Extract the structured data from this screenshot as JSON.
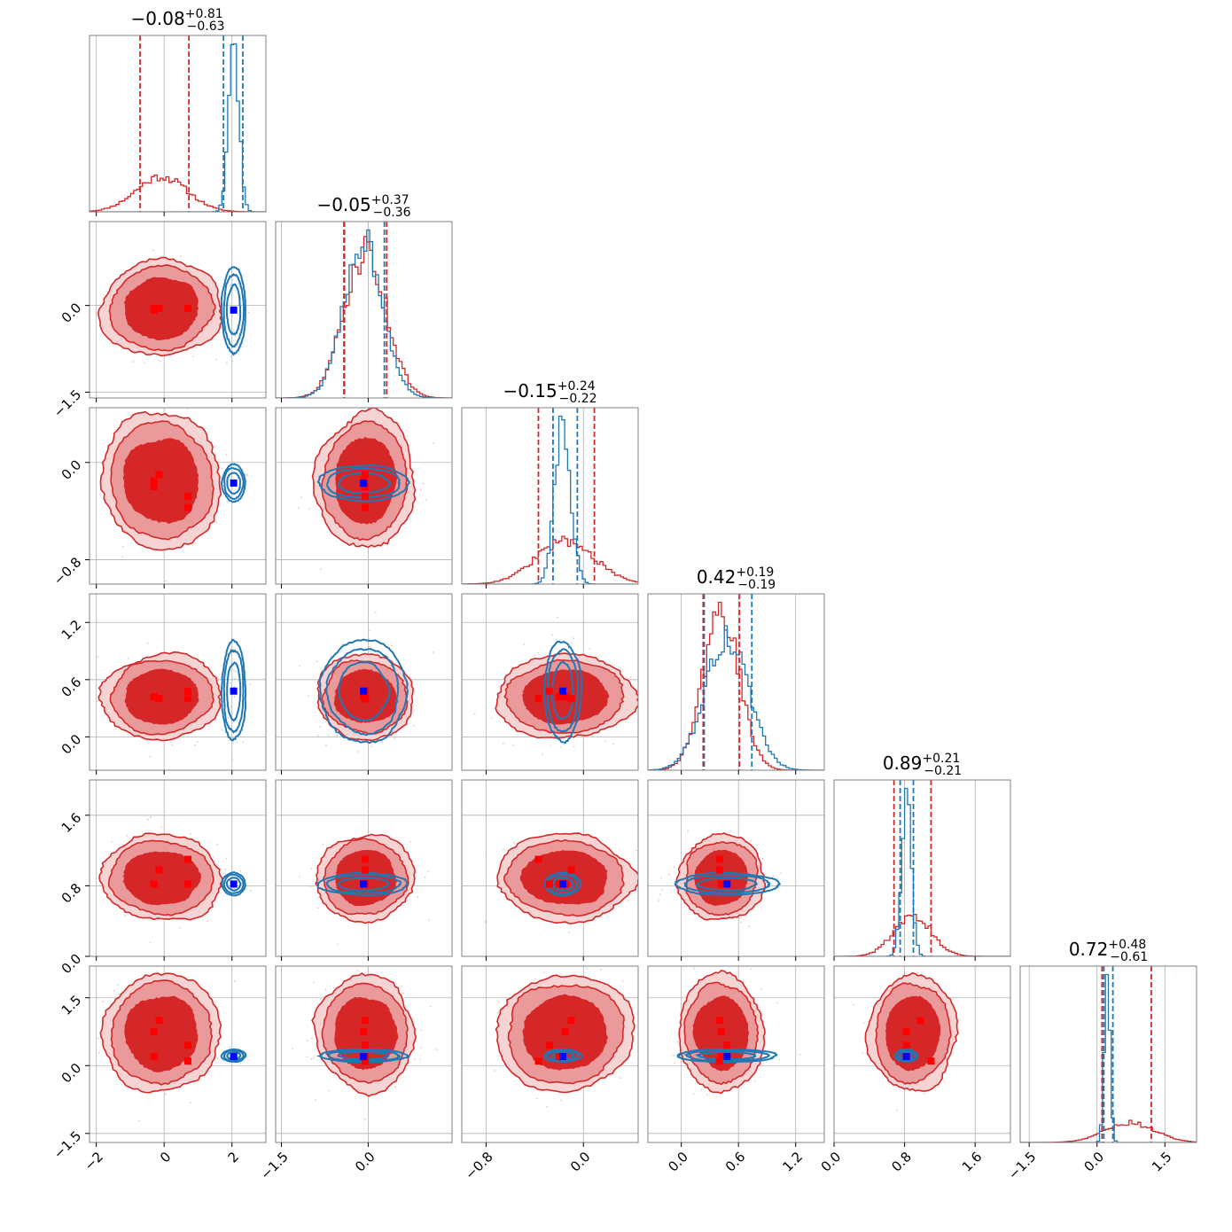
{
  "chart_data": {
    "type": "corner",
    "n_params": 6,
    "colors": {
      "red": "#d62728",
      "blue": "#1f77b4",
      "grid": "#b0b0b0",
      "marker_red": "#ff0000",
      "marker_blue": "#0000ff"
    },
    "grid": true,
    "params": [
      {
        "range": [
          -2.2,
          3.0
        ],
        "ticks": [
          -2,
          0,
          2
        ],
        "tick_labels": [
          "−2",
          "0",
          "2"
        ],
        "title": {
          "value": "−0.08",
          "plus": "+0.81",
          "minus": "−0.63"
        },
        "red": {
          "mean": -0.08,
          "sd": 0.75,
          "q16": -0.71,
          "q84": 0.73
        },
        "blue": {
          "mean": 2.05,
          "sd": 0.15,
          "q16": 1.75,
          "q84": 2.32
        }
      },
      {
        "range": [
          -1.6,
          1.45
        ],
        "ticks": [
          -1.5,
          0.0
        ],
        "tick_labels": [
          "−1.5",
          "0.0"
        ],
        "title": {
          "value": "−0.05",
          "plus": "+0.37",
          "minus": "−0.36"
        },
        "red": {
          "mean": -0.05,
          "sd": 0.36,
          "q16": -0.41,
          "q84": 0.32
        },
        "blue": {
          "mean": -0.08,
          "sd": 0.33,
          "q16": -0.42,
          "q84": 0.28
        }
      },
      {
        "range": [
          -1.0,
          0.45
        ],
        "ticks": [
          -0.8,
          0.0
        ],
        "tick_labels": [
          "−0.8",
          "0.0"
        ],
        "title": {
          "value": "−0.15",
          "plus": "+0.24",
          "minus": "−0.22"
        },
        "red": {
          "mean": -0.15,
          "sd": 0.24,
          "q16": -0.37,
          "q84": 0.09
        },
        "blue": {
          "mean": -0.17,
          "sd": 0.065,
          "q16": -0.25,
          "q84": -0.05
        }
      },
      {
        "range": [
          -0.35,
          1.5
        ],
        "ticks": [
          0.0,
          0.6,
          1.2
        ],
        "tick_labels": [
          "0.0",
          "0.6",
          "1.2"
        ],
        "title": {
          "value": "0.42",
          "plus": "+0.19",
          "minus": "−0.19"
        },
        "red": {
          "mean": 0.42,
          "sd": 0.19,
          "q16": 0.23,
          "q84": 0.61
        },
        "blue": {
          "mean": 0.48,
          "sd": 0.23,
          "q16": 0.24,
          "q84": 0.74
        }
      },
      {
        "range": [
          0.0,
          2.0
        ],
        "ticks": [
          0.0,
          0.8,
          1.6
        ],
        "tick_labels": [
          "0.0",
          "0.8",
          "1.6"
        ],
        "title": {
          "value": "0.89",
          "plus": "+0.21",
          "minus": "−0.21"
        },
        "red": {
          "mean": 0.89,
          "sd": 0.21,
          "q16": 0.68,
          "q84": 1.1
        },
        "blue": {
          "mean": 0.82,
          "sd": 0.055,
          "q16": 0.75,
          "q84": 0.9
        }
      },
      {
        "range": [
          -1.7,
          2.2
        ],
        "ticks": [
          -1.5,
          0.0,
          1.5
        ],
        "tick_labels": [
          "−1.5",
          "0.0",
          "1.5"
        ],
        "title": {
          "value": "0.72",
          "plus": "+0.48",
          "minus": "−0.61"
        },
        "red": {
          "mean": 0.72,
          "sd": 0.55,
          "q16": 0.11,
          "q84": 1.2
        },
        "blue": {
          "mean": 0.22,
          "sd": 0.06,
          "q16": 0.15,
          "q84": 0.35
        }
      }
    ],
    "truths": {
      "blue": [
        2.05,
        -0.08,
        -0.17,
        0.48,
        0.82,
        0.2
      ],
      "red": [
        [
          -0.3,
          -0.08,
          -0.15,
          0.42,
          0.82,
          0.75
        ],
        [
          -0.15,
          -0.05,
          -0.1,
          0.4,
          0.98,
          1.0
        ],
        [
          0.7,
          -0.05,
          -0.28,
          0.48,
          0.82,
          0.45
        ],
        [
          0.7,
          -0.05,
          -0.37,
          0.4,
          1.1,
          0.1
        ],
        [
          -0.3,
          -0.05,
          -0.2,
          0.42,
          0.82,
          0.2
        ]
      ]
    }
  }
}
